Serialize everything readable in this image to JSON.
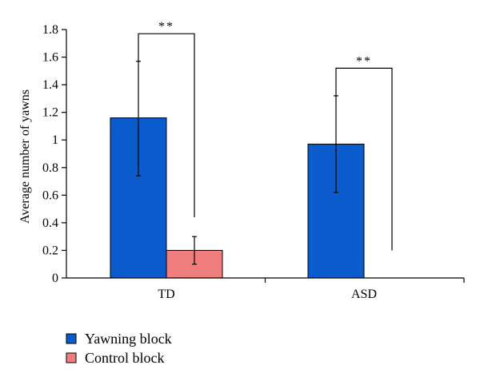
{
  "chart_data": {
    "type": "bar",
    "title": "",
    "xlabel": "",
    "ylabel": "Average number of yawns",
    "ylim": [
      0,
      1.8
    ],
    "yticks": [
      "0",
      "0.2",
      "0.4",
      "0.6",
      "0.8",
      "1",
      "1.2",
      "1.4",
      "1.6",
      "1.8"
    ],
    "ytick_values": [
      0,
      0.2,
      0.4,
      0.6,
      0.8,
      1.0,
      1.2,
      1.4,
      1.6,
      1.8
    ],
    "categories": [
      "TD",
      "ASD"
    ],
    "series": [
      {
        "name": "Yawning block",
        "color": "#0a5ccc",
        "values": [
          1.16,
          0.97
        ],
        "err_low": [
          0.74,
          0.62
        ],
        "err_high": [
          1.57,
          1.32
        ]
      },
      {
        "name": "Control block",
        "color": "#f07e7e",
        "values": [
          0.2,
          0.0
        ],
        "err_low": [
          0.1,
          null
        ],
        "err_high": [
          0.3,
          null
        ]
      }
    ],
    "significance": [
      {
        "category": "TD",
        "label": "**",
        "left_y": 1.57,
        "right_y": 0.44,
        "top_y": 1.77
      },
      {
        "category": "ASD",
        "label": "**",
        "left_y": 1.32,
        "right_y": 0.2,
        "top_y": 1.52
      }
    ],
    "legend_position": "bottom-left"
  }
}
